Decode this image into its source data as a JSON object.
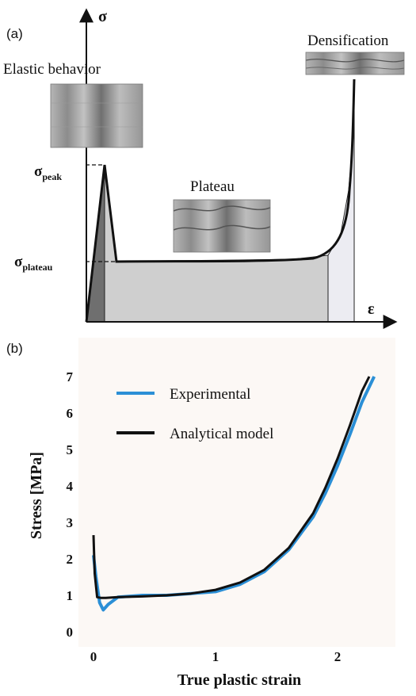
{
  "panel_a": {
    "label": "(a)",
    "y_axis_symbol": "σ",
    "x_axis_symbol": "ε",
    "sigma_peak": {
      "base": "σ",
      "sub": "peak"
    },
    "sigma_plateau": {
      "base": "σ",
      "sub": "plateau"
    },
    "regions": {
      "elastic": "Elastic behavior",
      "plateau": "Plateau",
      "densification": "Densification"
    }
  },
  "chart_data": [
    {
      "type": "area",
      "panel": "(a)",
      "title": "",
      "xlabel": "ε",
      "ylabel": "σ",
      "x": [
        0.0,
        0.06,
        0.1,
        0.3,
        0.6,
        0.8,
        0.85,
        0.88,
        0.9,
        0.91
      ],
      "y": [
        0.0,
        0.72,
        0.3,
        0.29,
        0.295,
        0.32,
        0.42,
        0.62,
        0.86,
        1.0
      ],
      "annotations": [
        "σ peak",
        "σ plateau",
        "Elastic behavior",
        "Plateau",
        "Densification"
      ]
    },
    {
      "type": "line",
      "panel": "(b)",
      "title": "",
      "xlabel": "True plastic strain",
      "ylabel": "Stress [MPa]",
      "xlim": [
        -0.05,
        2.38
      ],
      "ylim": [
        0,
        7
      ],
      "xticks": [
        "0",
        "1",
        "2"
      ],
      "yticks": [
        "0",
        "1",
        "2",
        "3",
        "4",
        "5",
        "6",
        "7"
      ],
      "legend_position": "top-left",
      "series": [
        {
          "name": "Experimental",
          "color": "#2b8fd6",
          "x": [
            0.0,
            0.02,
            0.05,
            0.08,
            0.12,
            0.2,
            0.4,
            0.6,
            0.8,
            1.0,
            1.2,
            1.4,
            1.6,
            1.8,
            1.9,
            2.0,
            2.1,
            2.2,
            2.3
          ],
          "y": [
            2.1,
            1.5,
            0.8,
            0.6,
            0.75,
            0.95,
            1.0,
            1.0,
            1.05,
            1.1,
            1.3,
            1.65,
            2.25,
            3.15,
            3.8,
            4.55,
            5.4,
            6.3,
            7.0
          ]
        },
        {
          "name": "Analytical model",
          "color": "#111111",
          "x": [
            0.0,
            0.01,
            0.03,
            0.06,
            0.1,
            0.2,
            0.4,
            0.6,
            0.8,
            1.0,
            1.2,
            1.4,
            1.6,
            1.8,
            1.9,
            2.0,
            2.1,
            2.2,
            2.26
          ],
          "y": [
            2.65,
            1.6,
            0.95,
            0.93,
            0.93,
            0.95,
            0.97,
            1.0,
            1.05,
            1.15,
            1.35,
            1.7,
            2.3,
            3.25,
            3.95,
            4.75,
            5.65,
            6.6,
            7.0
          ]
        }
      ]
    }
  ]
}
